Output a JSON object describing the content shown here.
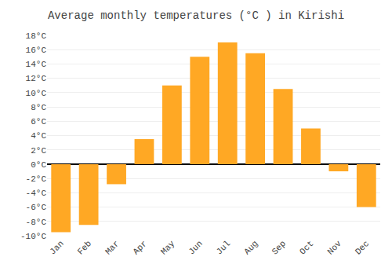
{
  "chart_data": {
    "type": "bar",
    "title": "Average monthly temperatures (°C ) in Kirishi",
    "categories": [
      "Jan",
      "Feb",
      "Mar",
      "Apr",
      "May",
      "Jun",
      "Jul",
      "Aug",
      "Sep",
      "Oct",
      "Nov",
      "Dec"
    ],
    "values": [
      -9.5,
      -8.5,
      -2.8,
      3.5,
      11.0,
      15.0,
      17.0,
      15.5,
      10.5,
      5.0,
      -1.0,
      -6.0
    ],
    "color": "#FFA824",
    "ylim": [
      -10,
      18
    ],
    "yticks": [
      {
        "value": -10,
        "label": "-10°C"
      },
      {
        "value": -8,
        "label": "-8°C"
      },
      {
        "value": -6,
        "label": "-6°C"
      },
      {
        "value": -4,
        "label": "-4°C"
      },
      {
        "value": -2,
        "label": "-2°C"
      },
      {
        "value": 0,
        "label": "0°C"
      },
      {
        "value": 2,
        "label": "2°C"
      },
      {
        "value": 4,
        "label": "4°C"
      },
      {
        "value": 6,
        "label": "6°C"
      },
      {
        "value": 8,
        "label": "8°C"
      },
      {
        "value": 10,
        "label": "10°C"
      },
      {
        "value": 12,
        "label": "12°C"
      },
      {
        "value": 14,
        "label": "14°C"
      },
      {
        "value": 16,
        "label": "16°C"
      },
      {
        "value": 18,
        "label": "18°C"
      }
    ],
    "grid": true
  }
}
